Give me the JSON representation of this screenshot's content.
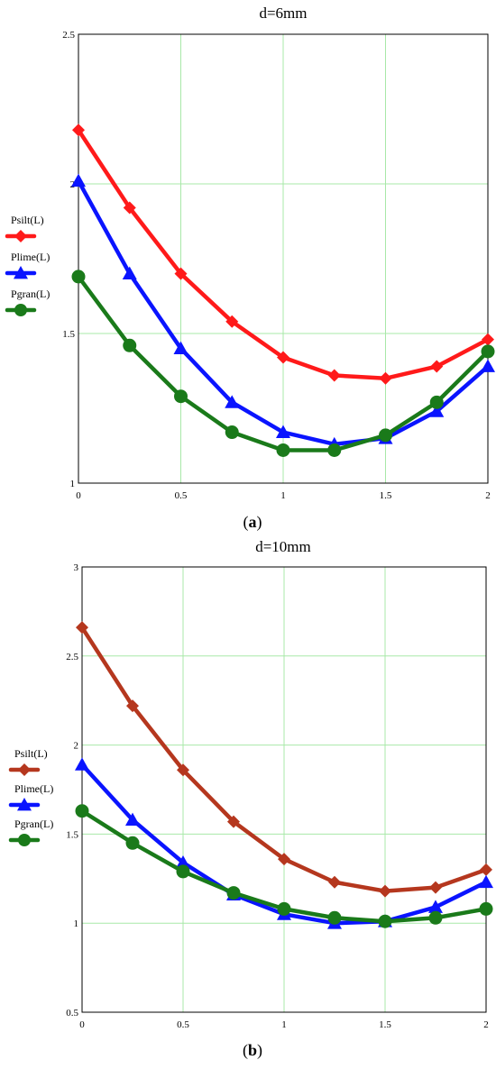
{
  "figure": {
    "panels": [
      {
        "caption_prefix": "(",
        "caption_letter": "a",
        "caption_suffix": ")"
      },
      {
        "caption_prefix": "(",
        "caption_letter": "b",
        "caption_suffix": ")"
      }
    ]
  },
  "chart_data": [
    {
      "type": "line",
      "title": "d=6mm",
      "xlabel": "",
      "ylabel": "",
      "xlim": [
        0,
        2
      ],
      "ylim": [
        1,
        2.5
      ],
      "x_ticks": [
        0,
        0.5,
        1,
        1.5,
        2
      ],
      "x_tick_labels": [
        "0",
        "0.5",
        "1",
        "1.5",
        "2"
      ],
      "y_ticks": [
        1,
        1.5,
        2,
        2.5
      ],
      "y_tick_labels": [
        "1",
        "1.5",
        "2",
        "2.5"
      ],
      "grid": true,
      "grid_color": "#a8e8a8",
      "legend_position": "left",
      "x": [
        0,
        0.25,
        0.5,
        0.75,
        1,
        1.25,
        1.5,
        1.75,
        2
      ],
      "series": [
        {
          "name": "Psilt(L)",
          "color": "#ff1a1a",
          "marker": "diamond",
          "values": [
            2.18,
            1.92,
            1.7,
            1.54,
            1.42,
            1.36,
            1.35,
            1.39,
            1.48
          ]
        },
        {
          "name": "Plime(L)",
          "color": "#0a14ff",
          "marker": "triangle",
          "values": [
            2.01,
            1.7,
            1.45,
            1.27,
            1.17,
            1.13,
            1.15,
            1.24,
            1.39
          ]
        },
        {
          "name": "Pgran(L)",
          "color": "#1a7a1a",
          "marker": "circle",
          "values": [
            1.69,
            1.46,
            1.29,
            1.17,
            1.11,
            1.11,
            1.16,
            1.27,
            1.44
          ]
        }
      ]
    },
    {
      "type": "line",
      "title": "d=10mm",
      "xlabel": "",
      "ylabel": "",
      "xlim": [
        0,
        2
      ],
      "ylim": [
        0.5,
        3
      ],
      "x_ticks": [
        0,
        0.5,
        1,
        1.5,
        2
      ],
      "x_tick_labels": [
        "0",
        "0.5",
        "1",
        "1.5",
        "2"
      ],
      "y_ticks": [
        0.5,
        1,
        1.5,
        2,
        2.5,
        3
      ],
      "y_tick_labels": [
        "0.5",
        "1",
        "1.5",
        "2",
        "2.5",
        "3"
      ],
      "grid": true,
      "grid_color": "#a8e8a8",
      "legend_position": "left",
      "x": [
        0,
        0.25,
        0.5,
        0.75,
        1,
        1.25,
        1.5,
        1.75,
        2
      ],
      "series": [
        {
          "name": "Psilt(L)",
          "color": "#b5371e",
          "marker": "diamond",
          "values": [
            2.66,
            2.22,
            1.86,
            1.57,
            1.36,
            1.23,
            1.18,
            1.2,
            1.3
          ]
        },
        {
          "name": "Plime(L)",
          "color": "#0a14ff",
          "marker": "triangle",
          "values": [
            1.89,
            1.58,
            1.34,
            1.16,
            1.05,
            1.0,
            1.01,
            1.09,
            1.23
          ]
        },
        {
          "name": "Pgran(L)",
          "color": "#1a7a1a",
          "marker": "circle",
          "values": [
            1.63,
            1.45,
            1.29,
            1.17,
            1.08,
            1.03,
            1.01,
            1.03,
            1.08
          ]
        }
      ]
    }
  ]
}
